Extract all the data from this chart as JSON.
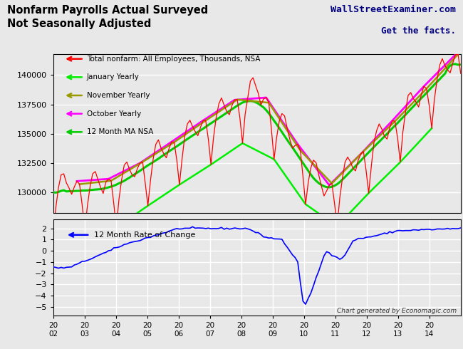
{
  "title_left": "Nonfarm Payrolls Actual Surveyed\nNot Seasonally Adjusted",
  "title_right_line1": "WallStreetExaminer.com",
  "title_right_line2": "Get the facts.",
  "watermark": "Chart generated by Economagic.com",
  "legend_entries": [
    "Total nonfarm: All Employees, Thousands, NSA",
    "January Yearly",
    "November Yearly",
    "October Yearly",
    "12 Month MA NSA"
  ],
  "legend_colors": [
    "#ff0000",
    "#00ff00",
    "#808000",
    "#ff00ff",
    "#00cc00"
  ],
  "upper_yticks": [
    130000,
    132500,
    135000,
    137500,
    140000
  ],
  "upper_ylim": [
    128200,
    141800
  ],
  "lower_yticks": [
    -5.0,
    -4.0,
    -3.0,
    -2.0,
    -1.0,
    0.0,
    1.0,
    2.0
  ],
  "lower_ylim": [
    -5.8,
    2.8
  ],
  "xtick_labels": [
    "20\n02",
    "20\n03",
    "20\n04",
    "20\n05",
    "20\n06",
    "20\n07",
    "20\n08",
    "20\n09",
    "20\n10",
    "20\n11",
    "20\n12",
    "20\n13",
    "20\n14"
  ],
  "bg_color": "#e8e8e8",
  "grid_color": "#ffffff",
  "roc_label": "12 Month Rate of Change"
}
